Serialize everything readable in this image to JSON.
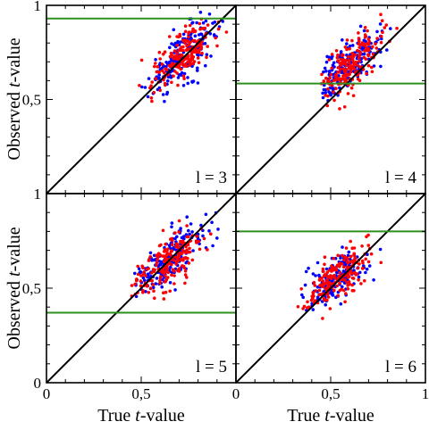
{
  "chart_data": {
    "type": "scatter",
    "layout": "2x2 grid of panels with shared axes",
    "xlabel": {
      "prefix": "True ",
      "italic": "t",
      "suffix": "-value"
    },
    "ylabel": {
      "prefix": "Observed ",
      "italic": "t",
      "suffix": "-value"
    },
    "xlim": [
      0,
      1
    ],
    "ylim": [
      0,
      1
    ],
    "x_tick_labels": [
      "0",
      "0,5",
      "1"
    ],
    "y_tick_labels": [
      "0",
      "0,5",
      "1"
    ],
    "x_tick_values": [
      0,
      0.5,
      1
    ],
    "y_tick_values": [
      0,
      0.5,
      1
    ],
    "colors": {
      "series_blue": "#0000ff",
      "series_red": "#ff0000",
      "diagonal": "#000000",
      "threshold": "#2f8f1f"
    },
    "series": [
      {
        "color": "#0000ff"
      },
      {
        "color": "#ff0000"
      }
    ],
    "reference_line": {
      "type": "identity y = x",
      "color": "#000000"
    },
    "panels": [
      {
        "label": "l = 3",
        "position": "top-left",
        "threshold_y": 0.93,
        "cloud": {
          "center_x": 0.72,
          "center_y": 0.73,
          "spread_x": 0.09,
          "spread_y": 0.1,
          "correlation": 0.75,
          "x_range": [
            0.48,
            1.0
          ],
          "y_range": [
            0.48,
            1.0
          ]
        }
      },
      {
        "label": "l = 4",
        "position": "top-right",
        "threshold_y": 0.585,
        "cloud": {
          "center_x": 0.6,
          "center_y": 0.68,
          "spread_x": 0.09,
          "spread_y": 0.09,
          "correlation": 0.72,
          "x_range": [
            0.45,
            0.97
          ],
          "y_range": [
            0.45,
            0.96
          ]
        }
      },
      {
        "label": "l = 5",
        "position": "bottom-left",
        "threshold_y": 0.37,
        "cloud": {
          "center_x": 0.64,
          "center_y": 0.64,
          "spread_x": 0.09,
          "spread_y": 0.09,
          "correlation": 0.72,
          "x_range": [
            0.44,
            0.93
          ],
          "y_range": [
            0.44,
            0.92
          ]
        }
      },
      {
        "label": "l = 6",
        "position": "bottom-right",
        "threshold_y": 0.8,
        "cloud": {
          "center_x": 0.53,
          "center_y": 0.55,
          "spread_x": 0.08,
          "spread_y": 0.08,
          "correlation": 0.68,
          "x_range": [
            0.32,
            0.85
          ],
          "y_range": [
            0.33,
            0.87
          ]
        }
      }
    ],
    "points_per_series_per_panel": 190
  }
}
